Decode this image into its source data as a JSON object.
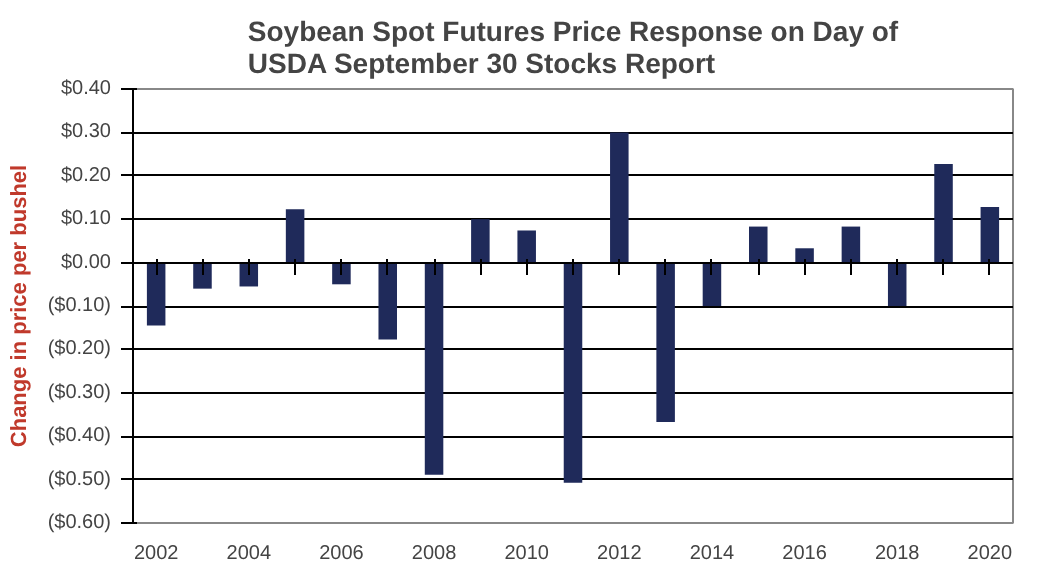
{
  "chart_data": {
    "type": "bar",
    "title": "Soybean Spot Futures Price Response on Day of\nUSDA September 30 Stocks Report",
    "ylabel": "Change in price per bushel",
    "categories": [
      "2002",
      null,
      "2004",
      null,
      "2006",
      null,
      "2008",
      null,
      "2010",
      null,
      "2012",
      null,
      "2014",
      null,
      "2016",
      null,
      "2018",
      null,
      "2020"
    ],
    "values": [
      -0.145,
      -0.06,
      -0.055,
      0.123,
      -0.05,
      -0.177,
      -0.489,
      0.1,
      0.074,
      -0.507,
      0.3,
      -0.367,
      -0.1,
      0.083,
      0.033,
      0.083,
      -0.1,
      0.227,
      0.128
    ],
    "color": "#1f2a5a",
    "ylim": [
      -0.6,
      0.4
    ],
    "yticks": [
      {
        "value": -0.6,
        "label": "($0.60)"
      },
      {
        "value": -0.5,
        "label": "($0.50)"
      },
      {
        "value": -0.4,
        "label": "($0.40)"
      },
      {
        "value": -0.3,
        "label": "($0.30)"
      },
      {
        "value": -0.2,
        "label": "($0.20)"
      },
      {
        "value": -0.1,
        "label": "($0.10)"
      },
      {
        "value": 0,
        "label": "$0.00"
      },
      {
        "value": 0.1,
        "label": "$0.10"
      },
      {
        "value": 0.2,
        "label": "$0.20"
      },
      {
        "value": 0.3,
        "label": "$0.30"
      },
      {
        "value": 0.4,
        "label": "$0.40"
      }
    ],
    "grid": "y"
  }
}
